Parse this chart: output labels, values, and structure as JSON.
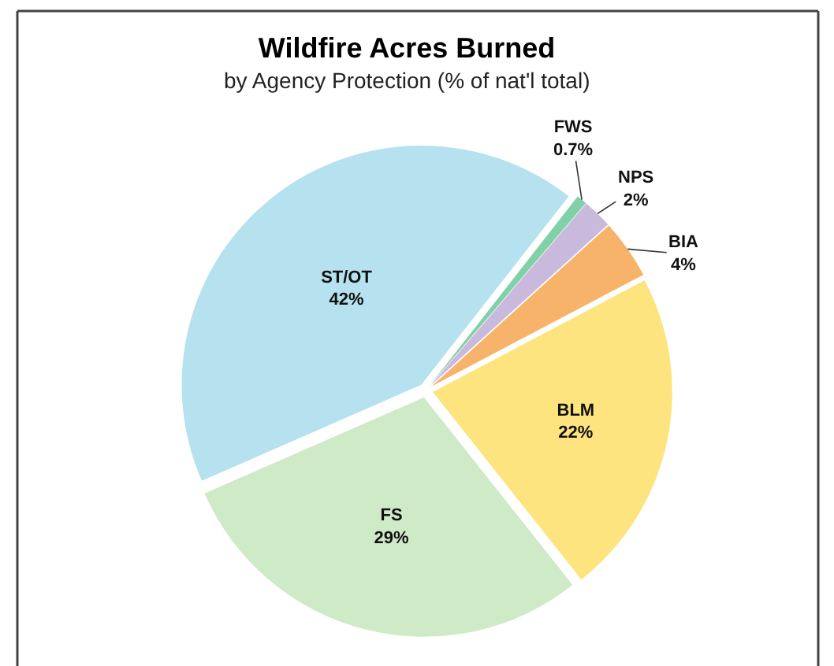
{
  "chart_data": {
    "type": "pie",
    "title": "Wildfire Acres Burned",
    "subtitle": "by Agency Protection (% of nat'l total)",
    "categories": [
      "FWS",
      "NPS",
      "BIA",
      "BLM",
      "FS",
      "ST/OT"
    ],
    "values": [
      0.7,
      2,
      4,
      22,
      29,
      42
    ],
    "value_labels": [
      "0.7%",
      "2%",
      "4%",
      "22%",
      "29%",
      "42%"
    ],
    "colors": [
      "#80d0a8",
      "#c9b9dd",
      "#f8b36a",
      "#fde47f",
      "#cfeac7",
      "#b5e2ee"
    ],
    "legend": false
  }
}
